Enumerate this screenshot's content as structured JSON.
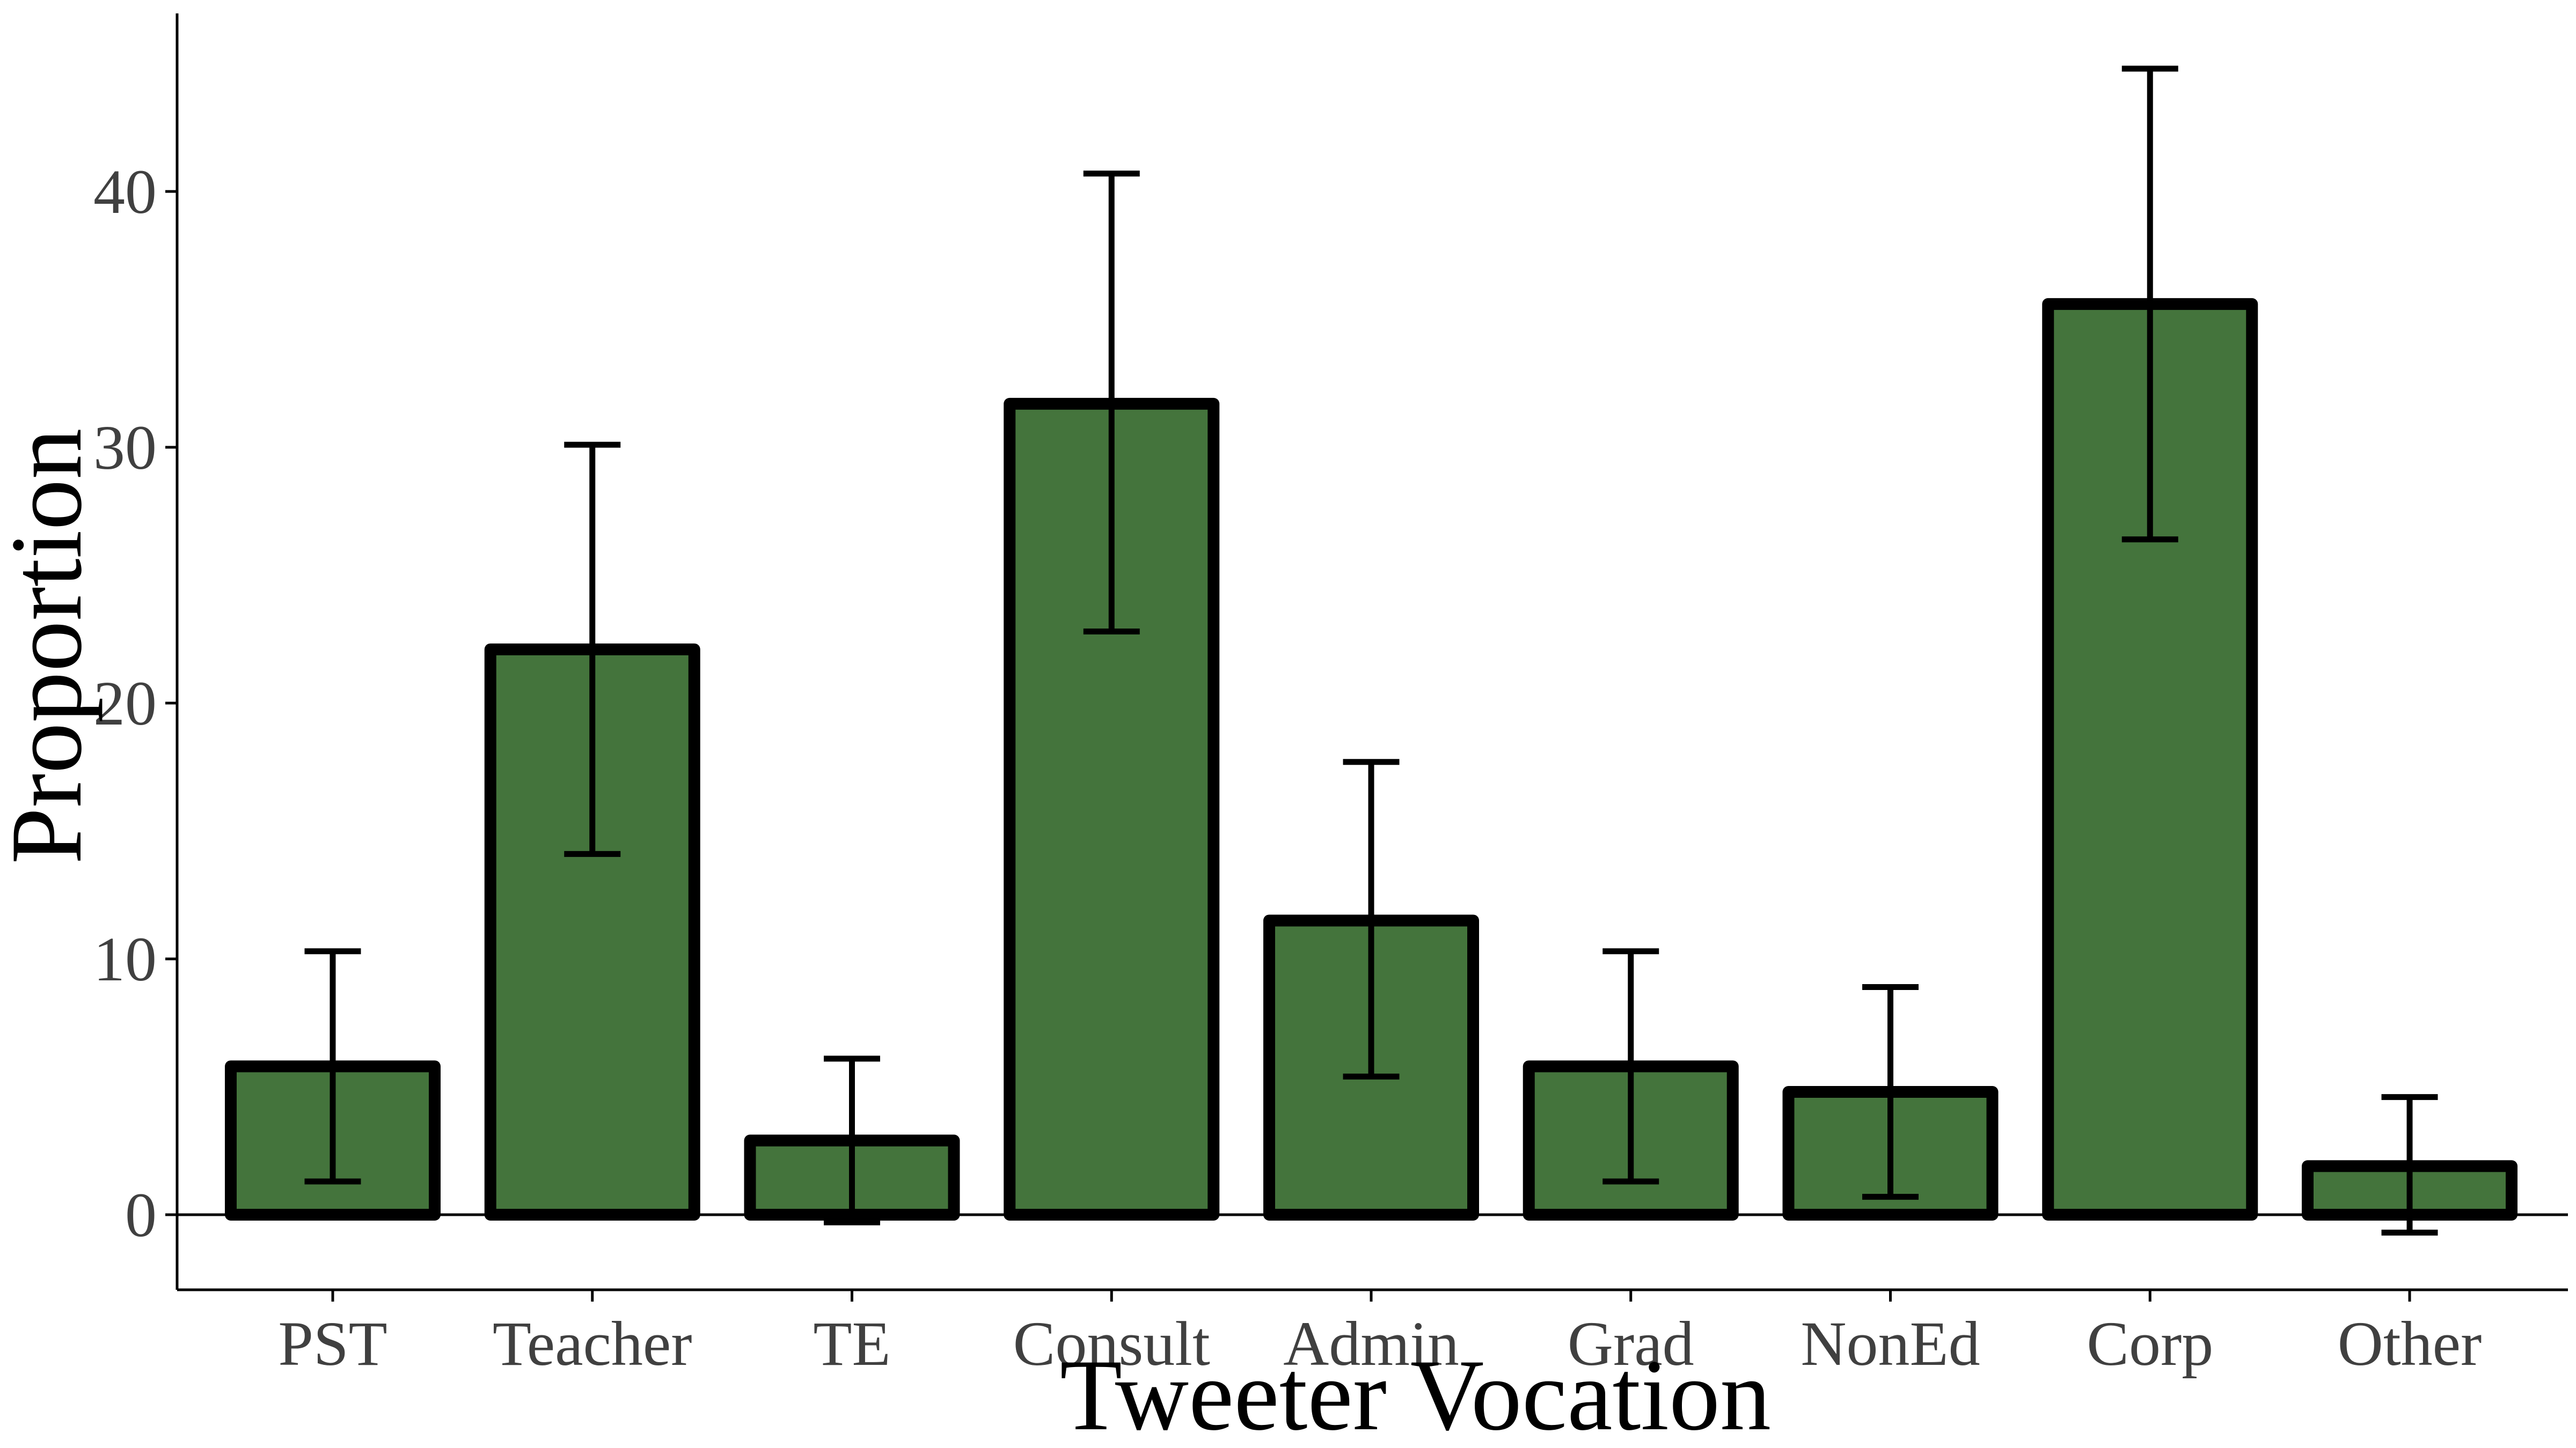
{
  "chart_data": {
    "type": "bar",
    "title": "",
    "xlabel": "Tweeter Vocation",
    "ylabel": "Proportion",
    "categories": [
      "PST",
      "Teacher",
      "TE",
      "Consult",
      "Admin",
      "Grad",
      "NonEd",
      "Corp",
      "Other"
    ],
    "values": [
      5.8,
      22.1,
      2.9,
      31.7,
      11.5,
      5.8,
      4.8,
      35.6,
      1.9
    ],
    "error_low": [
      1.3,
      14.1,
      -0.3,
      22.8,
      5.4,
      1.3,
      0.7,
      26.4,
      -0.7
    ],
    "error_high": [
      10.3,
      30.1,
      6.1,
      40.7,
      17.7,
      10.3,
      8.9,
      44.8,
      4.6
    ],
    "yticks": [
      0,
      10,
      20,
      30,
      40
    ],
    "ylim": [
      -3,
      47
    ],
    "grid": false,
    "legend": "none",
    "colors": {
      "bar_fill": "#44743c",
      "bar_stroke": "#000000",
      "error_bar": "#000000",
      "axis": "#000000",
      "tick_text": "#404040"
    }
  }
}
